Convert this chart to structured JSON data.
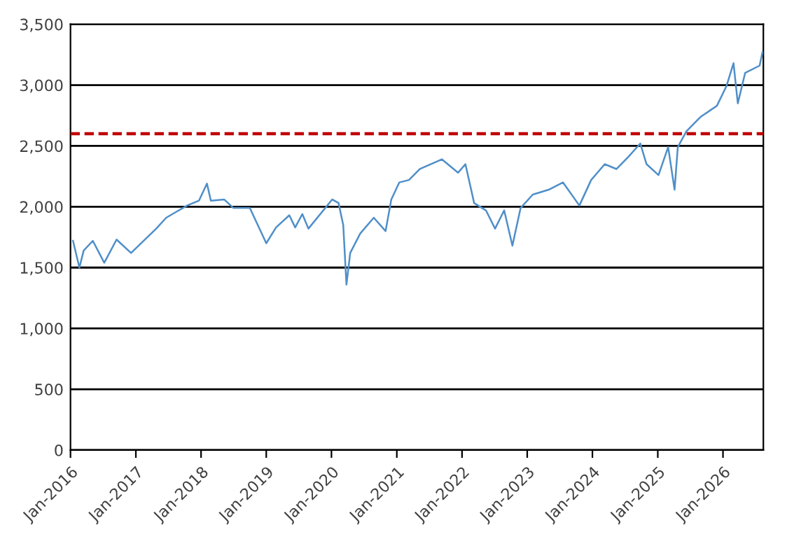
{
  "chart_data": {
    "type": "line",
    "x": [
      "2016-01-15",
      "2016-02-20",
      "2016-03-15",
      "2016-05-05",
      "2016-07-08",
      "2016-09-15",
      "2016-12-05",
      "2017-04-25",
      "2017-06-20",
      "2017-10-15",
      "2017-12-20",
      "2018-02-03",
      "2018-02-25",
      "2018-05-10",
      "2018-07-01",
      "2018-10-01",
      "2019-01-01",
      "2019-02-25",
      "2019-05-10",
      "2019-06-12",
      "2019-07-22",
      "2019-08-25",
      "2020-01-05",
      "2020-02-10",
      "2020-03-07",
      "2020-03-25",
      "2020-04-15",
      "2020-06-10",
      "2020-08-25",
      "2020-10-30",
      "2020-12-01",
      "2021-01-15",
      "2021-03-10",
      "2021-05-10",
      "2021-09-10",
      "2021-12-10",
      "2022-01-20",
      "2022-03-10",
      "2022-05-15",
      "2022-07-05",
      "2022-08-25",
      "2022-10-10",
      "2022-11-25",
      "2023-02-01",
      "2023-05-01",
      "2023-07-20",
      "2023-10-20",
      "2023-12-25",
      "2024-03-10",
      "2024-05-15",
      "2024-07-20",
      "2024-09-25",
      "2024-10-30",
      "2025-01-05",
      "2025-02-28",
      "2025-04-05",
      "2025-04-23",
      "2025-06-10",
      "2025-08-30",
      "2025-11-28",
      "2026-01-20",
      "2026-03-01",
      "2026-03-25",
      "2026-05-05",
      "2026-07-25",
      "2026-08-10"
    ],
    "series": [
      {
        "color": "#4f8fc9",
        "values": [
          1720,
          1500,
          1640,
          1720,
          1540,
          1730,
          1620,
          1820,
          1910,
          2010,
          2050,
          2190,
          2050,
          2060,
          1990,
          1990,
          1700,
          1830,
          1930,
          1830,
          1940,
          1820,
          2060,
          2030,
          1850,
          1360,
          1620,
          1780,
          1910,
          1800,
          2060,
          2200,
          2220,
          2310,
          2390,
          2280,
          2350,
          2030,
          1970,
          1820,
          1970,
          1680,
          1990,
          2100,
          2140,
          2200,
          2010,
          2220,
          2350,
          2310,
          2410,
          2520,
          2350,
          2260,
          2490,
          2140,
          2490,
          2620,
          2740,
          2830,
          2990,
          3180,
          2850,
          3100,
          3160,
          3270
        ]
      }
    ],
    "xlim": [
      "2016-01-01",
      "2026-08-15"
    ],
    "xticks": [
      {
        "value": "2016-01-01",
        "label": "Jan-2016"
      },
      {
        "value": "2017-01-01",
        "label": "Jan-2017"
      },
      {
        "value": "2018-01-01",
        "label": "Jan-2018"
      },
      {
        "value": "2019-01-01",
        "label": "Jan-2019"
      },
      {
        "value": "2020-01-01",
        "label": "Jan-2020"
      },
      {
        "value": "2021-01-01",
        "label": "Jan-2021"
      },
      {
        "value": "2022-01-01",
        "label": "Jan-2022"
      },
      {
        "value": "2023-01-01",
        "label": "Jan-2023"
      },
      {
        "value": "2024-01-01",
        "label": "Jan-2024"
      },
      {
        "value": "2025-01-01",
        "label": "Jan-2025"
      },
      {
        "value": "2026-01-01",
        "label": "Jan-2026"
      }
    ],
    "ylim": [
      0,
      3500
    ],
    "yticks": [
      {
        "value": 0,
        "label": "0"
      },
      {
        "value": 500,
        "label": "500"
      },
      {
        "value": 1000,
        "label": "1,000"
      },
      {
        "value": 1500,
        "label": "1,500"
      },
      {
        "value": 2000,
        "label": "2,000"
      },
      {
        "value": 2500,
        "label": "2,500"
      },
      {
        "value": 3000,
        "label": "3,000"
      },
      {
        "value": 3500,
        "label": "3,500"
      }
    ],
    "ref_lines": [
      {
        "axis": "y",
        "value": 2600,
        "color": "#c00000",
        "line_style": "dashed"
      }
    ],
    "grid": "y",
    "legend": false,
    "marker": "none",
    "line_style": "solid"
  }
}
